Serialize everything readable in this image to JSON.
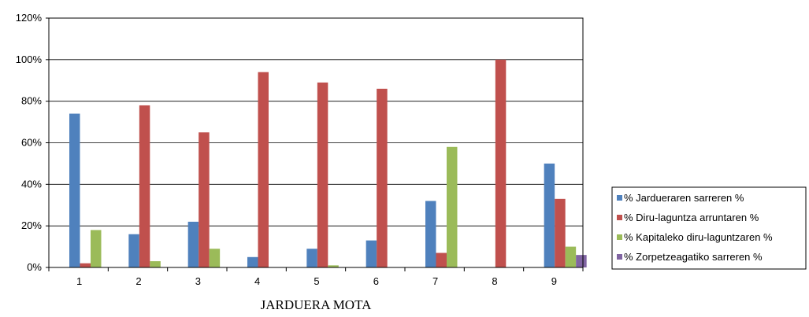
{
  "chart_data": {
    "type": "bar",
    "title": "",
    "xlabel": "JARDUERA MOTA",
    "ylabel": "",
    "ylim": [
      0,
      120
    ],
    "yticks": [
      "0%",
      "20%",
      "40%",
      "60%",
      "80%",
      "100%",
      "120%"
    ],
    "ytick_values": [
      0,
      20,
      40,
      60,
      80,
      100,
      120
    ],
    "categories": [
      "1",
      "2",
      "3",
      "4",
      "5",
      "6",
      "7",
      "8",
      "9"
    ],
    "series": [
      {
        "name": "% Jardueraren sarreren %",
        "color": "#4F81BD",
        "values": [
          74,
          16,
          22,
          5,
          9,
          13,
          32,
          0,
          50
        ]
      },
      {
        "name": "% Diru-laguntza arruntaren %",
        "color": "#C0504D",
        "values": [
          2,
          78,
          65,
          94,
          89,
          86,
          7,
          100,
          33
        ]
      },
      {
        "name": "% Kapitaleko diru-laguntzaren %",
        "color": "#9BBB59",
        "values": [
          18,
          3,
          9,
          0,
          1,
          0,
          58,
          0,
          10
        ]
      },
      {
        "name": "% Zorpetzeagatiko sarreren %",
        "color": "#8064A2",
        "values": [
          0,
          0,
          0,
          0,
          0,
          0,
          0,
          0,
          6
        ]
      }
    ],
    "grid": true,
    "legend_position": "right"
  }
}
